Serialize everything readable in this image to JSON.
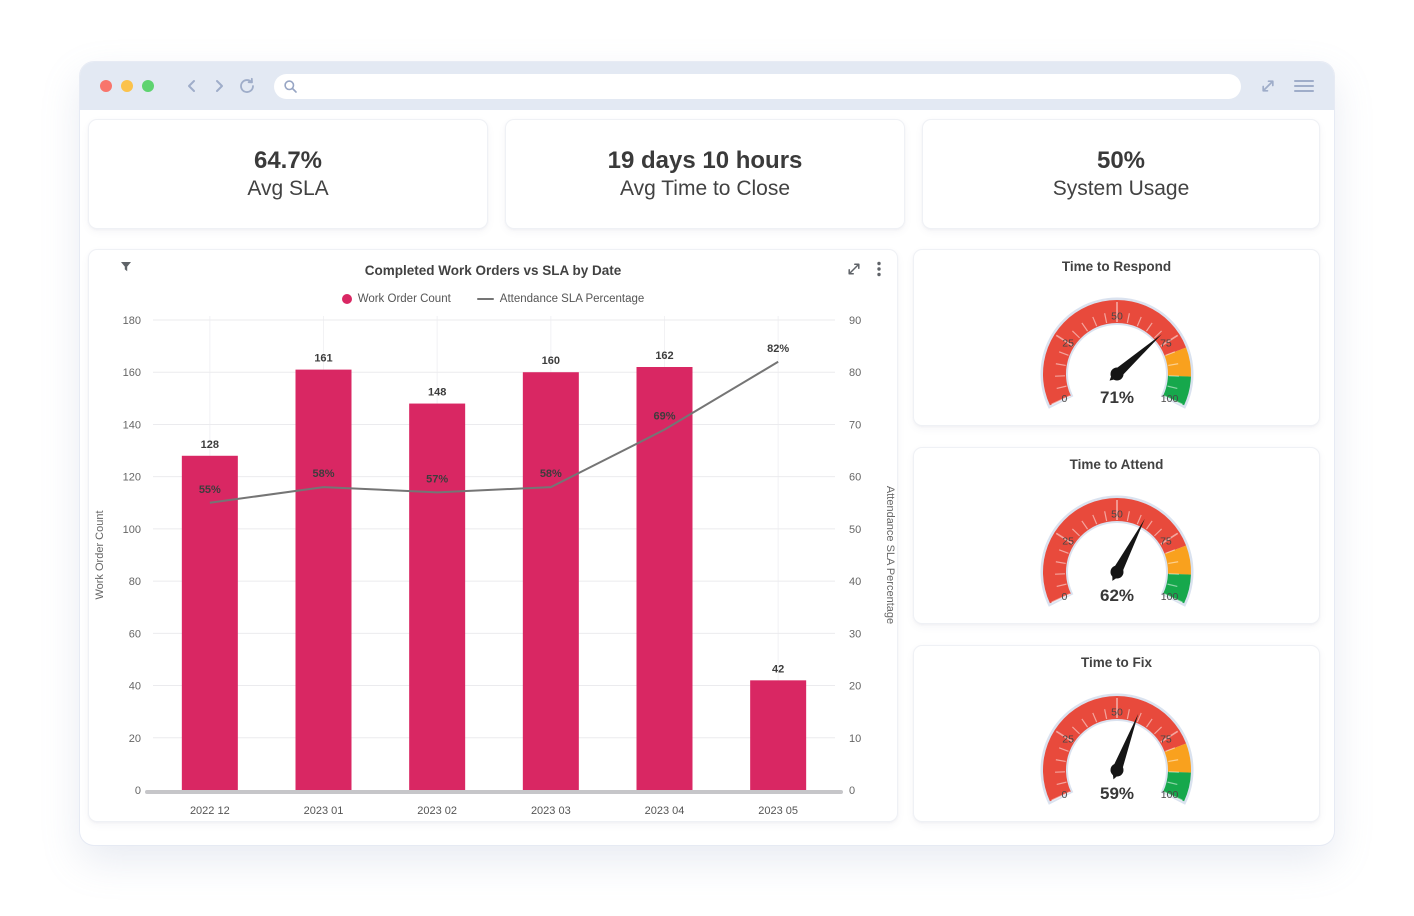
{
  "browser": {
    "url": {
      "value": "",
      "placeholder": ""
    },
    "icons": {
      "back": "chevron-left",
      "forward": "chevron-right",
      "reload": "reload-arrow",
      "search": "magnifier",
      "expand": "diagonal-resize-arrows",
      "menu": "hamburger-menu"
    },
    "traffic_colors": {
      "close": "#F8756C",
      "minimize": "#FBC24B",
      "maximize": "#5ED36F"
    }
  },
  "kpis": [
    {
      "value": "64.7%",
      "label": "Avg SLA"
    },
    {
      "value": "19 days 10 hours",
      "label": "Avg Time to Close"
    },
    {
      "value": "50%",
      "label": "System Usage"
    }
  ],
  "chart_header_icons": {
    "filter": "funnel-filter",
    "expand": "expand-arrows",
    "menu": "kebab-dots"
  },
  "chart_data": [
    {
      "type": "bar+line",
      "title": "Completed Work Orders vs SLA by Date",
      "categories": [
        "2022 12",
        "2023 01",
        "2023 02",
        "2023 03",
        "2023 04",
        "2023 05"
      ],
      "series": [
        {
          "name": "Work Order Count",
          "type": "bar",
          "axis": "left",
          "values": [
            128,
            161,
            148,
            160,
            162,
            42
          ],
          "color": "#D92763"
        },
        {
          "name": "Attendance SLA Percentage",
          "type": "line",
          "axis": "right",
          "values": [
            55,
            58,
            57,
            58,
            69,
            82
          ],
          "labels": [
            "55%",
            "58%",
            "57%",
            "58%",
            "69%",
            "82%"
          ],
          "color": "#757575"
        }
      ],
      "left_axis": {
        "label": "Work Order Count",
        "min": 0,
        "max": 180,
        "step": 20
      },
      "right_axis": {
        "label": "Attendance SLA Percentage",
        "min": 0,
        "max": 90,
        "step": 10
      },
      "grid": true,
      "legend_position": "top"
    },
    {
      "type": "gauge",
      "title": "Time to Respond",
      "value": 71,
      "value_label": "71%",
      "min": 0,
      "max": 100,
      "tick_labels": [
        "0",
        "25",
        "50",
        "75",
        "100"
      ],
      "segments": [
        {
          "from": 0,
          "to": 80,
          "color": "#E84A3C"
        },
        {
          "from": 80,
          "to": 90,
          "color": "#F9A11E"
        },
        {
          "from": 90,
          "to": 100,
          "color": "#16A84C"
        }
      ]
    },
    {
      "type": "gauge",
      "title": "Time to Attend",
      "value": 62,
      "value_label": "62%",
      "min": 0,
      "max": 100,
      "tick_labels": [
        "0",
        "25",
        "50",
        "75",
        "100"
      ],
      "segments": [
        {
          "from": 0,
          "to": 80,
          "color": "#E84A3C"
        },
        {
          "from": 80,
          "to": 90,
          "color": "#F9A11E"
        },
        {
          "from": 90,
          "to": 100,
          "color": "#16A84C"
        }
      ]
    },
    {
      "type": "gauge",
      "title": "Time to Fix",
      "value": 59,
      "value_label": "59%",
      "min": 0,
      "max": 100,
      "tick_labels": [
        "0",
        "25",
        "50",
        "75",
        "100"
      ],
      "segments": [
        {
          "from": 0,
          "to": 80,
          "color": "#E84A3C"
        },
        {
          "from": 80,
          "to": 90,
          "color": "#F9A11E"
        },
        {
          "from": 90,
          "to": 100,
          "color": "#16A84C"
        }
      ]
    }
  ],
  "colors": {
    "bar_pink": "#D92763",
    "line_gray": "#757575",
    "gauge_red": "#E84A3C",
    "gauge_orange": "#F9A11E",
    "gauge_green": "#16A84C",
    "gauge_rim": "#DAE2EF",
    "needle_black": "#151515",
    "chrome_bg": "#E3E9F3",
    "grid_line": "#EBEBEE",
    "axis_base": "#C6C6C9"
  }
}
